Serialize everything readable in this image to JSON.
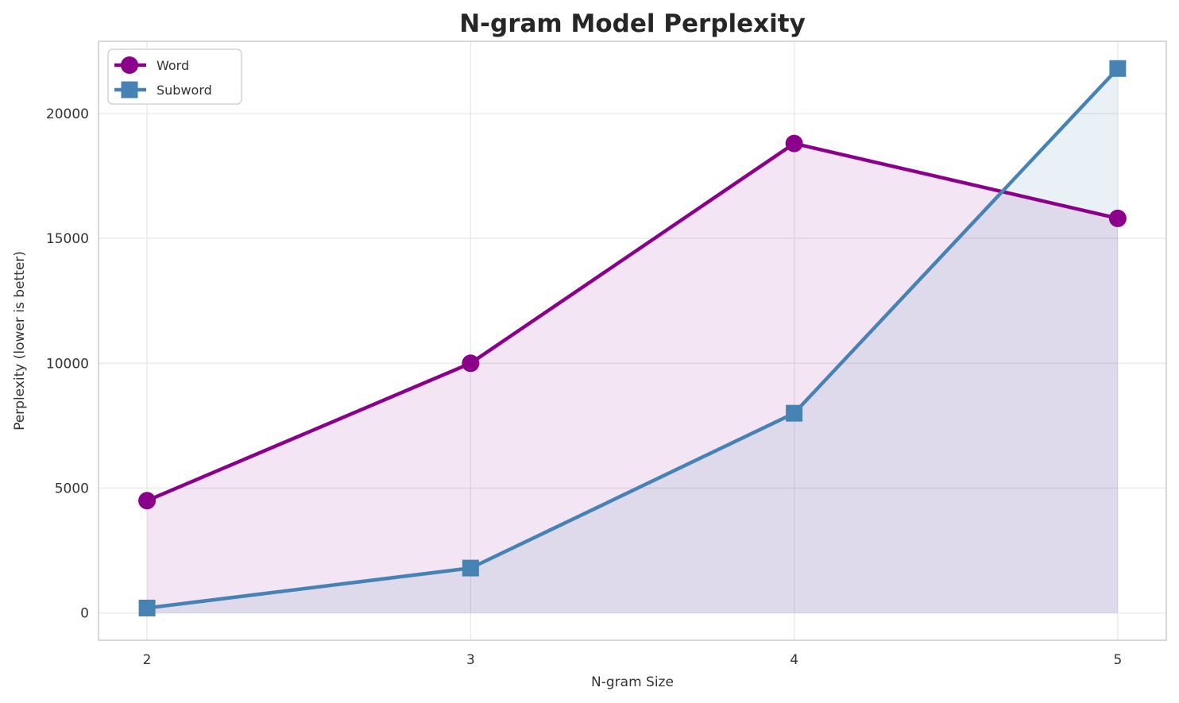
{
  "chart_data": {
    "type": "line",
    "title": "N-gram Model Perplexity",
    "xlabel": "N-gram Size",
    "ylabel": "Perplexity (lower is better)",
    "x": [
      2,
      3,
      4,
      5
    ],
    "xtick_labels": [
      "2",
      "3",
      "4",
      "5"
    ],
    "ytick_values": [
      0,
      5000,
      10000,
      15000,
      20000
    ],
    "ytick_labels": [
      "0",
      "5000",
      "10000",
      "15000",
      "20000"
    ],
    "xlim": [
      1.85,
      5.15
    ],
    "ylim": [
      -1090,
      22890
    ],
    "grid": true,
    "legend_position": "upper left",
    "series": [
      {
        "name": "Word",
        "values": [
          4500,
          10000,
          18800,
          15800
        ],
        "color": "#8B008B",
        "marker": "circle",
        "fill_to_zero": true,
        "fill_opacity": 0.1,
        "line_width": 4.5
      },
      {
        "name": "Subword",
        "values": [
          200,
          1800,
          8000,
          21800
        ],
        "color": "#4682B4",
        "marker": "square",
        "fill_to_zero": true,
        "fill_opacity": 0.12,
        "line_width": 4.5
      }
    ],
    "style": {
      "grid_color": "#e8e8e8",
      "spine_color": "#cccccc",
      "background": "#ffffff",
      "legend_border": "#cccccc",
      "legend_background": "#ffffff"
    }
  }
}
